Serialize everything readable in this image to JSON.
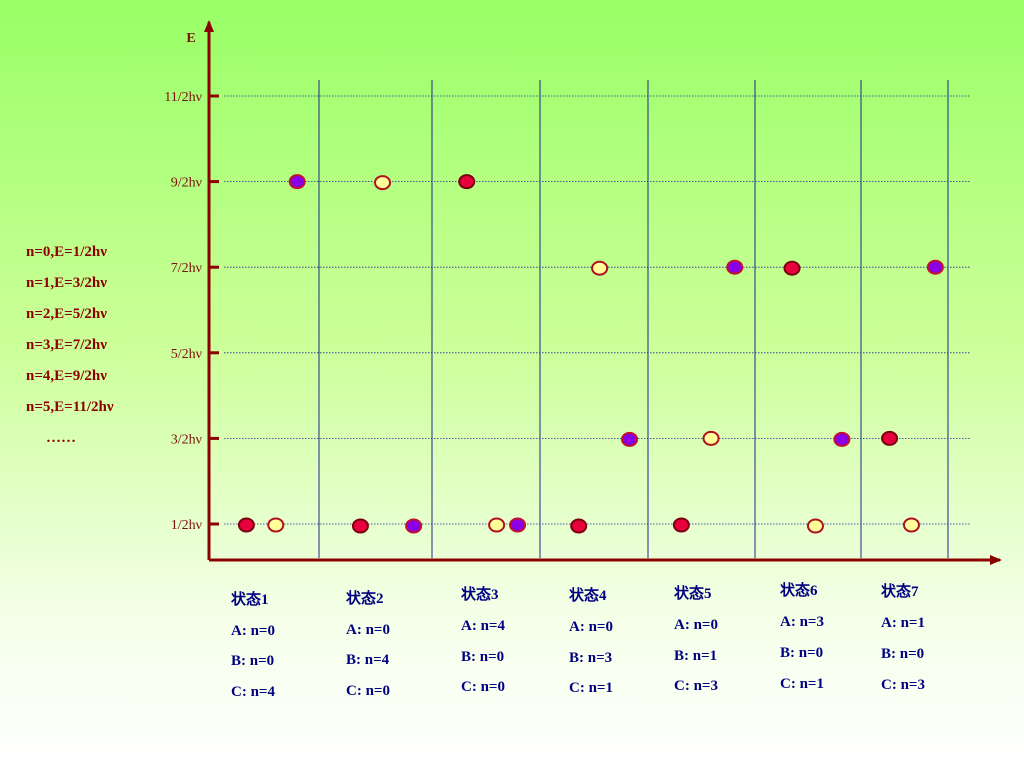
{
  "axis": {
    "y_label": "E"
  },
  "levels": [
    {
      "n": 0,
      "label": "1/2hν"
    },
    {
      "n": 1,
      "label": "3/2hν"
    },
    {
      "n": 2,
      "label": "5/2hν"
    },
    {
      "n": 3,
      "label": "7/2hν"
    },
    {
      "n": 4,
      "label": "9/2hν"
    },
    {
      "n": 5,
      "label": "11/2hν"
    }
  ],
  "legend": {
    "lines": [
      "n=0,E=1/2hν",
      "n=1,E=3/2hν",
      "n=2,E=5/2hν",
      "n=3,E=7/2hν",
      "n=4,E=9/2hν",
      "n=5,E=11/2hν"
    ],
    "ellipsis": "……"
  },
  "particle_colors": {
    "A": {
      "fill": "#e8003c",
      "stroke": "#7a0010"
    },
    "B": {
      "fill": "#ffff99",
      "stroke": "#b01020"
    },
    "C": {
      "fill": "#8a00e6",
      "stroke": "#c0102a"
    }
  },
  "states": [
    {
      "title": "状态1",
      "lines": [
        "A: n=0",
        "B: n=0",
        "C: n=4"
      ],
      "A": 0,
      "B": 0,
      "C": 4
    },
    {
      "title": "状态2",
      "lines": [
        "A: n=0",
        "B: n=4",
        "C: n=0"
      ],
      "A": 0,
      "B": 4,
      "C": 0
    },
    {
      "title": "状态3",
      "lines": [
        "A: n=4",
        "B: n=0",
        "C: n=0"
      ],
      "A": 4,
      "B": 0,
      "C": 0
    },
    {
      "title": "状态4",
      "lines": [
        "A: n=0",
        "B: n=3",
        "C: n=1"
      ],
      "A": 0,
      "B": 3,
      "C": 1
    },
    {
      "title": "状态5",
      "lines": [
        "A: n=0",
        "B: n=1",
        "C: n=3"
      ],
      "A": 0,
      "B": 1,
      "C": 3
    },
    {
      "title": "状态6",
      "lines": [
        "A: n=3",
        "B: n=0",
        "C: n=1"
      ],
      "A": 3,
      "B": 0,
      "C": 1
    },
    {
      "title": "状态7",
      "lines": [
        "A: n=1",
        "B: n=0",
        "C: n=3"
      ],
      "A": 1,
      "B": 0,
      "C": 3
    }
  ]
}
